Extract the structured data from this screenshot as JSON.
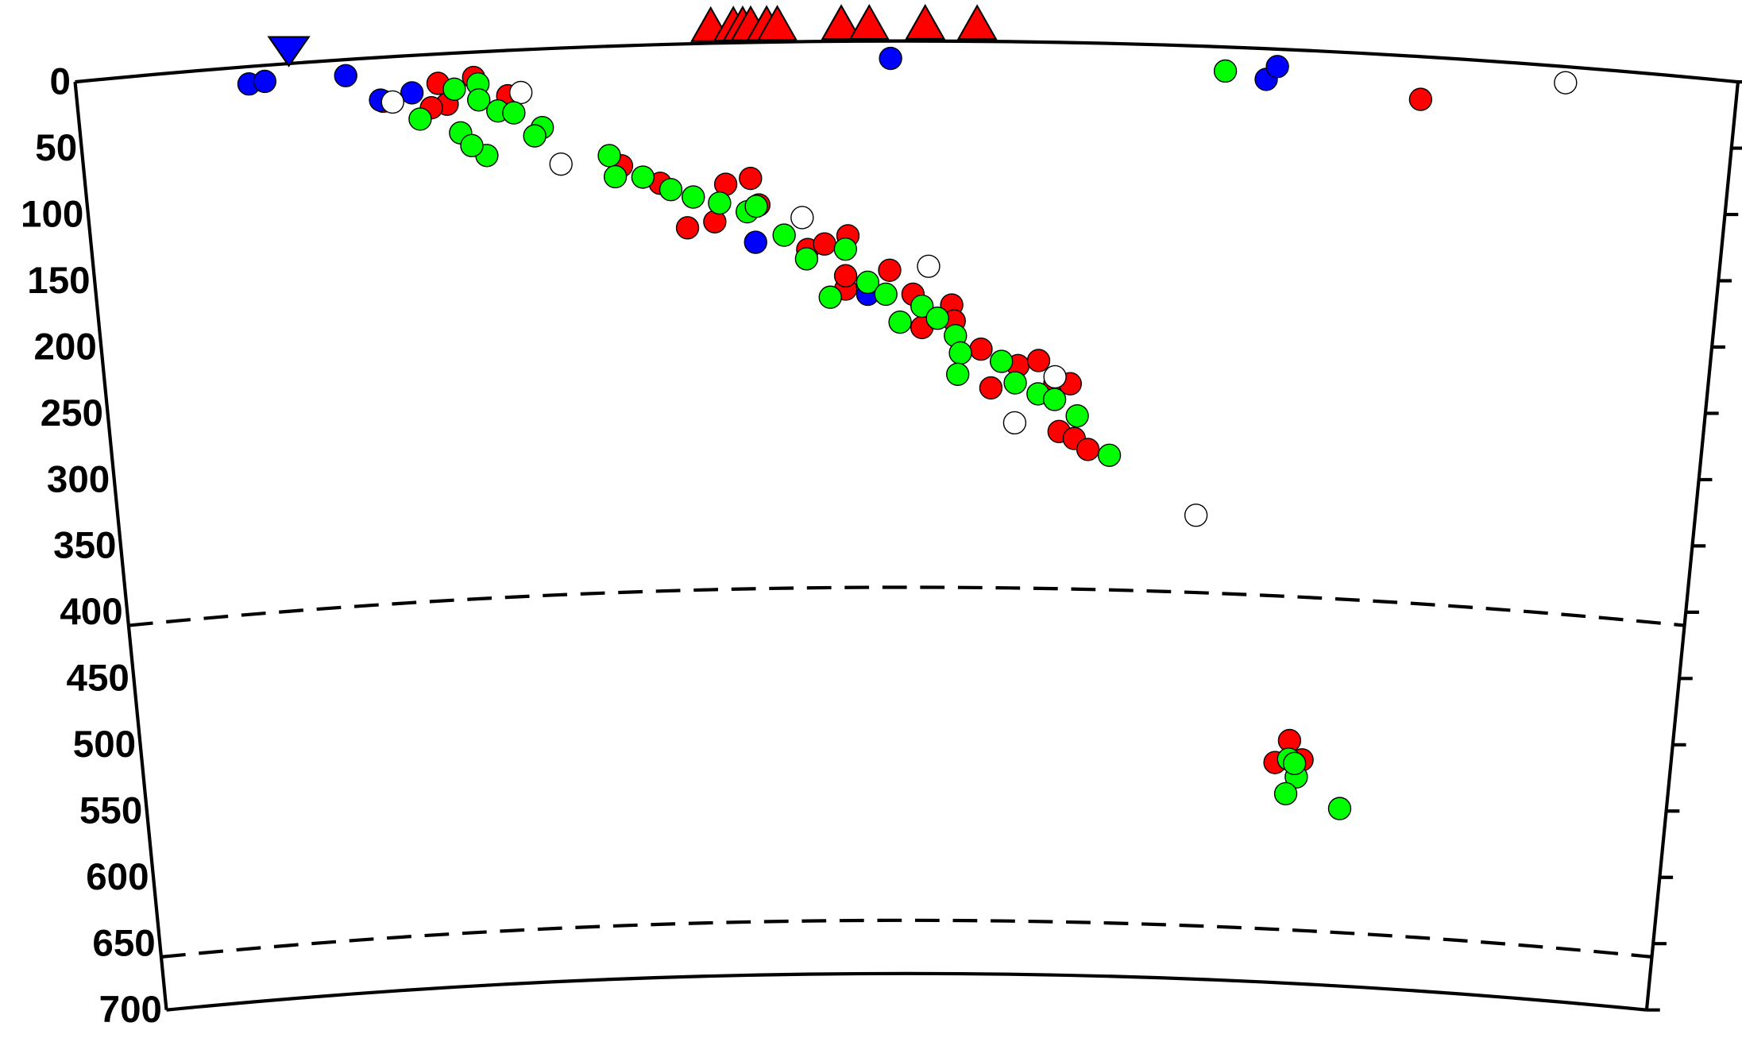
{
  "chart_data": {
    "type": "section",
    "ylim": [
      0,
      700
    ],
    "yticks": [
      0,
      50,
      100,
      150,
      200,
      250,
      300,
      350,
      400,
      450,
      500,
      550,
      600,
      650,
      700
    ],
    "xlim": [
      0,
      1250
    ],
    "dashed_depths": [
      410,
      660
    ],
    "series": [
      {
        "color": "#ff0000",
        "x": [
          230,
          272,
          299,
          278,
          324,
          266,
          437,
          457,
          478,
          506,
          512,
          549,
          562,
          580,
          578,
          612,
          630,
          637,
          660,
          662,
          683,
          691,
          712,
          728,
          741,
          745,
          753,
          757,
          768,
          927,
          938,
          949,
          1013,
          408,
          487,
          578
        ],
        "values": [
          33,
          22,
          19,
          38,
          34,
          40,
          104,
          138,
          134,
          102,
          122,
          156,
          152,
          146,
          186,
          172,
          190,
          215,
          198,
          210,
          231,
          260,
          243,
          239,
          256,
          292,
          256,
          297,
          305,
          535,
          518,
          532,
          32,
          90,
          106,
          176
        ]
      },
      {
        "color": "#0000ff",
        "x": [
          130,
          142,
          203,
          228,
          252,
          509,
          613,
          896,
          904,
          595
        ],
        "values": [
          13,
          12,
          12,
          32,
          28,
          150,
          13,
          23,
          13,
          190
        ]
      },
      {
        "color": "#ffffff",
        "x": [
          237,
          334,
          362,
          545,
          642,
          710,
          741,
          855,
          1121
        ],
        "values": [
          34,
          32,
          87,
          132,
          169,
          286,
          251,
          352,
          12
        ]
      },
      {
        "color": "#00ff00",
        "x": [
          257,
          284,
          302,
          287,
          302,
          316,
          328,
          306,
          295,
          349,
          343,
          399,
          403,
          424,
          445,
          462,
          482,
          503,
          510,
          531,
          548,
          566,
          578,
          595,
          609,
          620,
          637,
          649,
          663,
          667,
          665,
          699,
          710,
          728,
          741,
          759,
          785,
          865,
          938,
          945,
          937,
          982,
          943
        ],
        "values": [
          48,
          27,
          24,
          60,
          36,
          45,
          47,
          78,
          70,
          59,
          65,
          82,
          98,
          99,
          109,
          115,
          120,
          127,
          123,
          145,
          163,
          192,
          156,
          181,
          190,
          211,
          199,
          208,
          221,
          234,
          250,
          240,
          256,
          264,
          268,
          280,
          309,
          18,
          532,
          545,
          558,
          567,
          535
        ]
      }
    ],
    "volcanoes": {
      "color": "#ff0000",
      "x": [
        478,
        495,
        502,
        508,
        520,
        528,
        576,
        597,
        639,
        678
      ]
    },
    "trench": {
      "color": "#0000ff",
      "x": [
        161
      ]
    }
  }
}
